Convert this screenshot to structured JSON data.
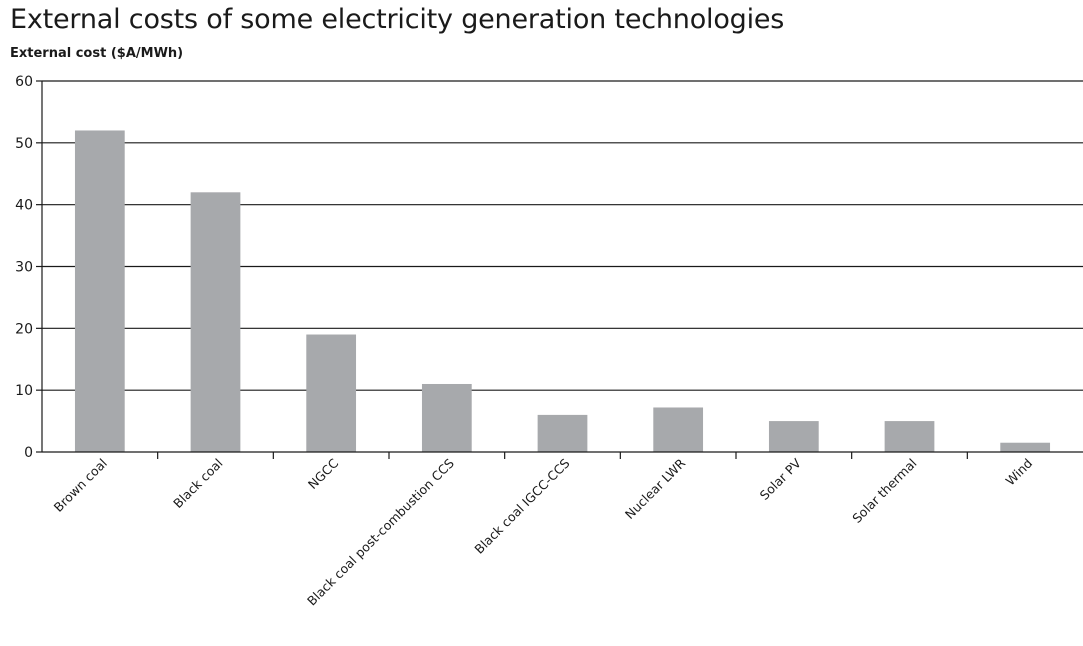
{
  "chart_data": {
    "type": "bar",
    "title": "External costs of some electricity generation technologies",
    "ylabel": "External cost ($A/MWh)",
    "xlabel": "",
    "ylim": [
      0,
      60
    ],
    "yticks": [
      0,
      10,
      20,
      30,
      40,
      50,
      60
    ],
    "grid": true,
    "legend": "none",
    "bar_color": "#a7a9ac",
    "categories": [
      "Brown coal",
      "Black coal",
      "NGCC",
      "Black coal post-combustion CCS",
      "Black coal IGCC-CCS",
      "Nuclear LWR",
      "Solar PV",
      "Solar thermal",
      "Wind"
    ],
    "values": [
      52,
      42,
      19,
      11,
      6,
      7.2,
      5,
      5,
      1.5
    ]
  }
}
